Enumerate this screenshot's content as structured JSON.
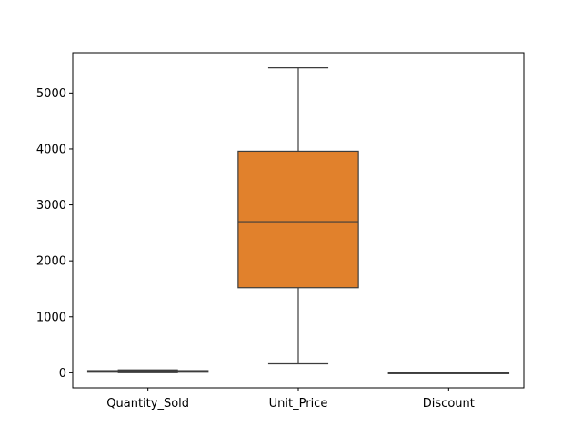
{
  "chart_data": {
    "type": "box",
    "categories": [
      "Quantity_Sold",
      "Unit_Price",
      "Discount"
    ],
    "boxes": [
      {
        "category": "Quantity_Sold",
        "whisker_low": 1,
        "q1": 10,
        "median": 25,
        "q3": 38,
        "whisker_high": 50,
        "color": "#3274a1"
      },
      {
        "category": "Unit_Price",
        "whisker_low": 160,
        "q1": 1520,
        "median": 2700,
        "q3": 3960,
        "whisker_high": 5450,
        "color": "#e1812c"
      },
      {
        "category": "Discount",
        "whisker_low": 0,
        "q1": 0.05,
        "median": 0.1,
        "q3": 0.2,
        "whisker_high": 0.3,
        "color": "#3a923a"
      }
    ],
    "ylim": [
      -270,
      5720
    ],
    "yticks": [
      0,
      1000,
      2000,
      3000,
      4000,
      5000
    ],
    "title": "",
    "xlabel": "",
    "ylabel": "",
    "grid": false,
    "line_color": "#3d3d3d"
  }
}
